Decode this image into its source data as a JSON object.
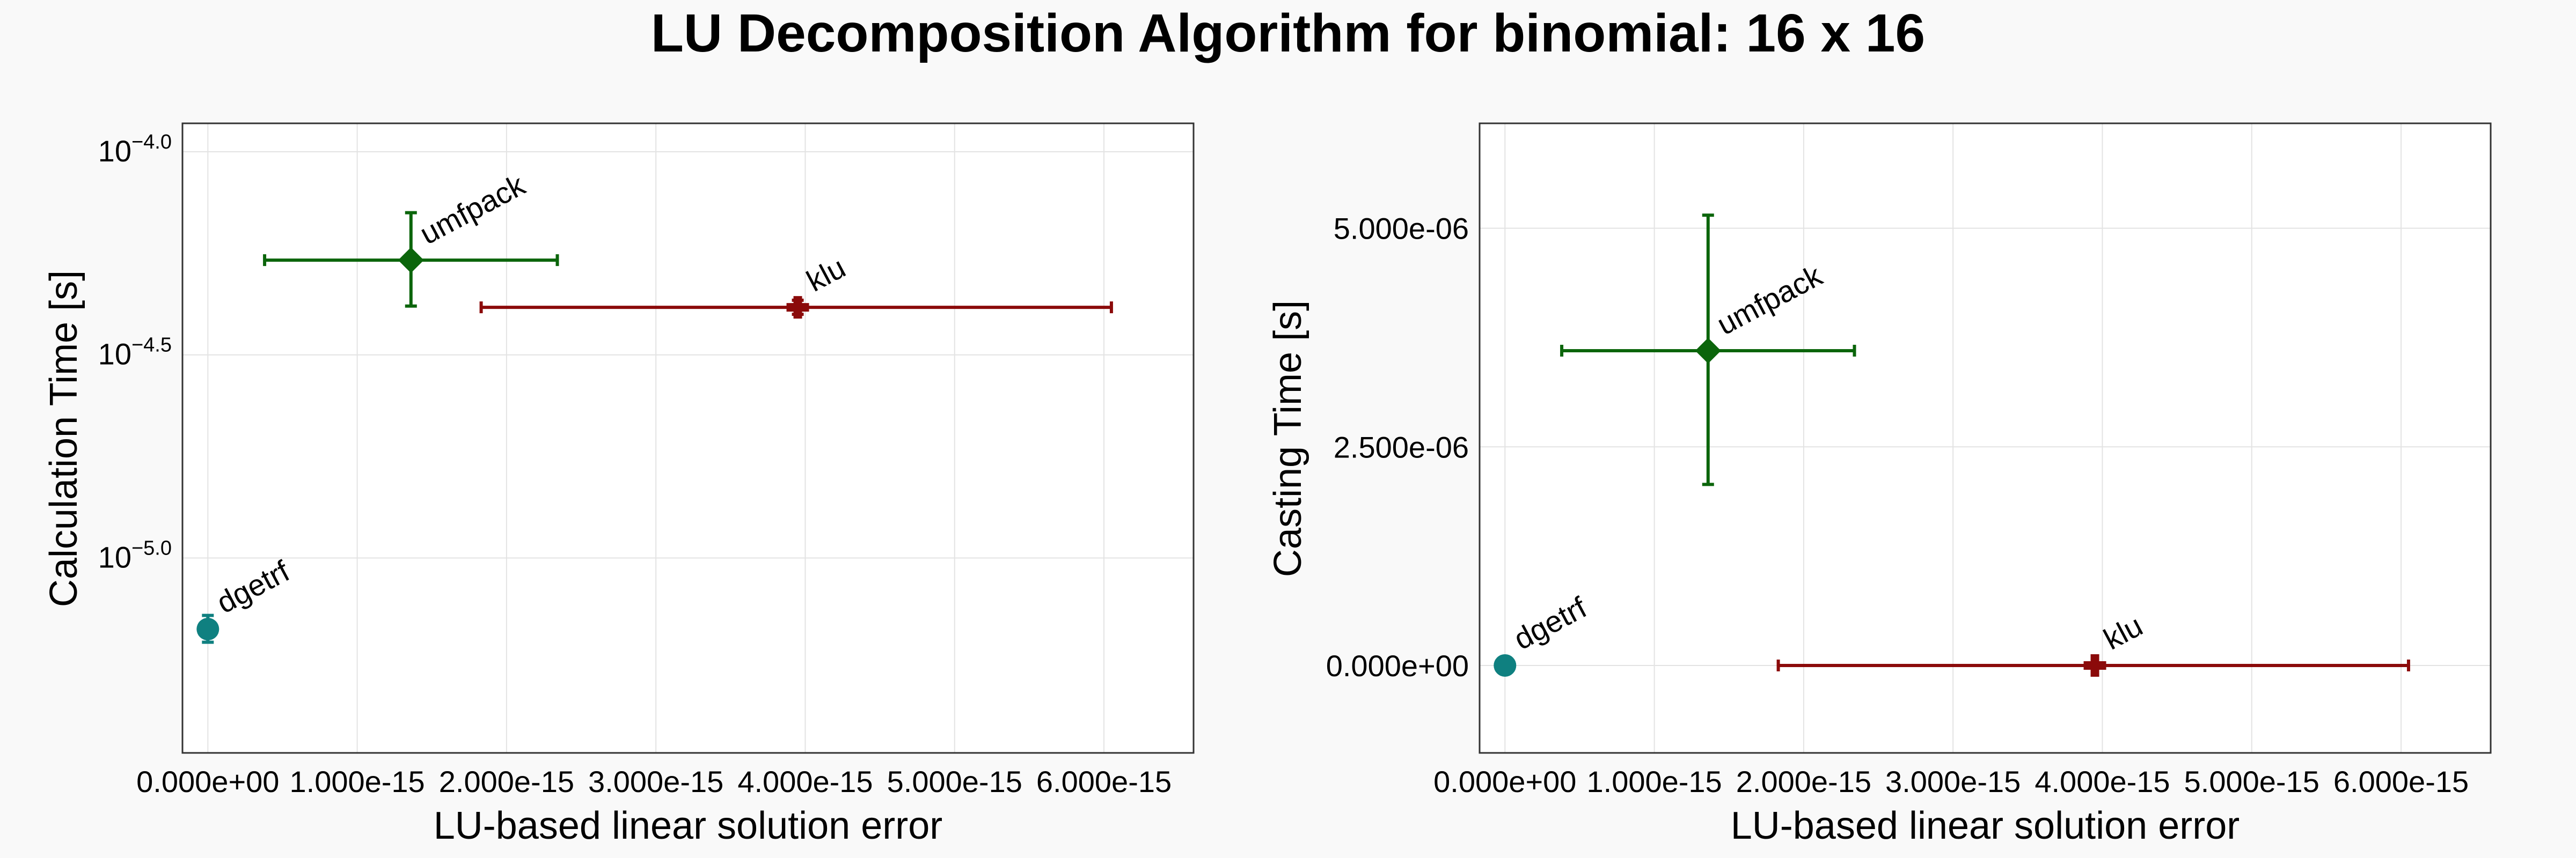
{
  "figure": {
    "title": "LU Decomposition Algorithm for binomial: 16 x 16"
  },
  "colors": {
    "background": "#f9f9f9",
    "grid": "#e3e3e3",
    "frame": "#333333",
    "dgetrf": "#0f8080",
    "umfpack": "#0b650b",
    "klu": "#8b0a0a"
  },
  "chart_data": [
    {
      "type": "scatter",
      "xlabel": "LU-based linear solution error",
      "ylabel": "Calculation Time [s]",
      "yscale": "log10",
      "xlim": [
        -1.7e-16,
        6.6e-15
      ],
      "ylim_log10": [
        -5.48,
        -3.93
      ],
      "x_ticks": [
        0,
        1e-15,
        2e-15,
        3e-15,
        4e-15,
        5e-15,
        6e-15
      ],
      "x_tick_labels": [
        "0.000e+00",
        "1.000e-15",
        "2.000e-15",
        "3.000e-15",
        "4.000e-15",
        "5.000e-15",
        "6.000e-15"
      ],
      "y_ticks_log10": [
        -5.0,
        -4.5,
        -4.0
      ],
      "y_tick_labels": [
        {
          "base": "10",
          "exp": "−5.0"
        },
        {
          "base": "10",
          "exp": "−4.5"
        },
        {
          "base": "10",
          "exp": "−4.0"
        }
      ],
      "grid": true,
      "series": [
        {
          "name": "dgetrf",
          "marker": "circle",
          "x": 0,
          "y": 6.68e-06,
          "xerr": [
            0,
            0
          ],
          "yerr": [
            6.2e-06,
            7.22e-06
          ]
        },
        {
          "name": "umfpack",
          "marker": "diamond",
          "x": 1.36e-15,
          "y": 5.41e-05,
          "xerr": [
            3.8e-16,
            2.34e-15
          ],
          "yerr": [
            4.17e-05,
            7.08e-05
          ]
        },
        {
          "name": "klu",
          "marker": "cross",
          "x": 3.95e-15,
          "y": 4.14e-05,
          "xerr": [
            1.83e-15,
            6.05e-15
          ],
          "yerr": [
            3.98e-05,
            4.31e-05
          ]
        }
      ]
    },
    {
      "type": "scatter",
      "xlabel": "LU-based linear solution error",
      "ylabel": "Casting Time [s]",
      "yscale": "linear",
      "xlim": [
        -1.7e-16,
        6.6e-15
      ],
      "ylim": [
        -1e-06,
        6.2e-06
      ],
      "x_ticks": [
        0,
        1e-15,
        2e-15,
        3e-15,
        4e-15,
        5e-15,
        6e-15
      ],
      "x_tick_labels": [
        "0.000e+00",
        "1.000e-15",
        "2.000e-15",
        "3.000e-15",
        "4.000e-15",
        "5.000e-15",
        "6.000e-15"
      ],
      "y_ticks": [
        0,
        2.5e-06,
        5e-06
      ],
      "y_tick_labels": [
        "0.000e+00",
        "2.500e-06",
        "5.000e-06"
      ],
      "grid": true,
      "series": [
        {
          "name": "dgetrf",
          "marker": "circle",
          "x": 0,
          "y": 0.0,
          "xerr": [
            0,
            0
          ],
          "yerr": [
            0.0,
            0.0
          ]
        },
        {
          "name": "umfpack",
          "marker": "diamond",
          "x": 1.36e-15,
          "y": 3.6e-06,
          "xerr": [
            3.8e-16,
            2.34e-15
          ],
          "yerr": [
            2.07e-06,
            5.15e-06
          ]
        },
        {
          "name": "klu",
          "marker": "cross",
          "x": 3.95e-15,
          "y": 0.0,
          "xerr": [
            1.83e-15,
            6.05e-15
          ],
          "yerr": [
            0.0,
            0.0
          ]
        }
      ]
    }
  ]
}
